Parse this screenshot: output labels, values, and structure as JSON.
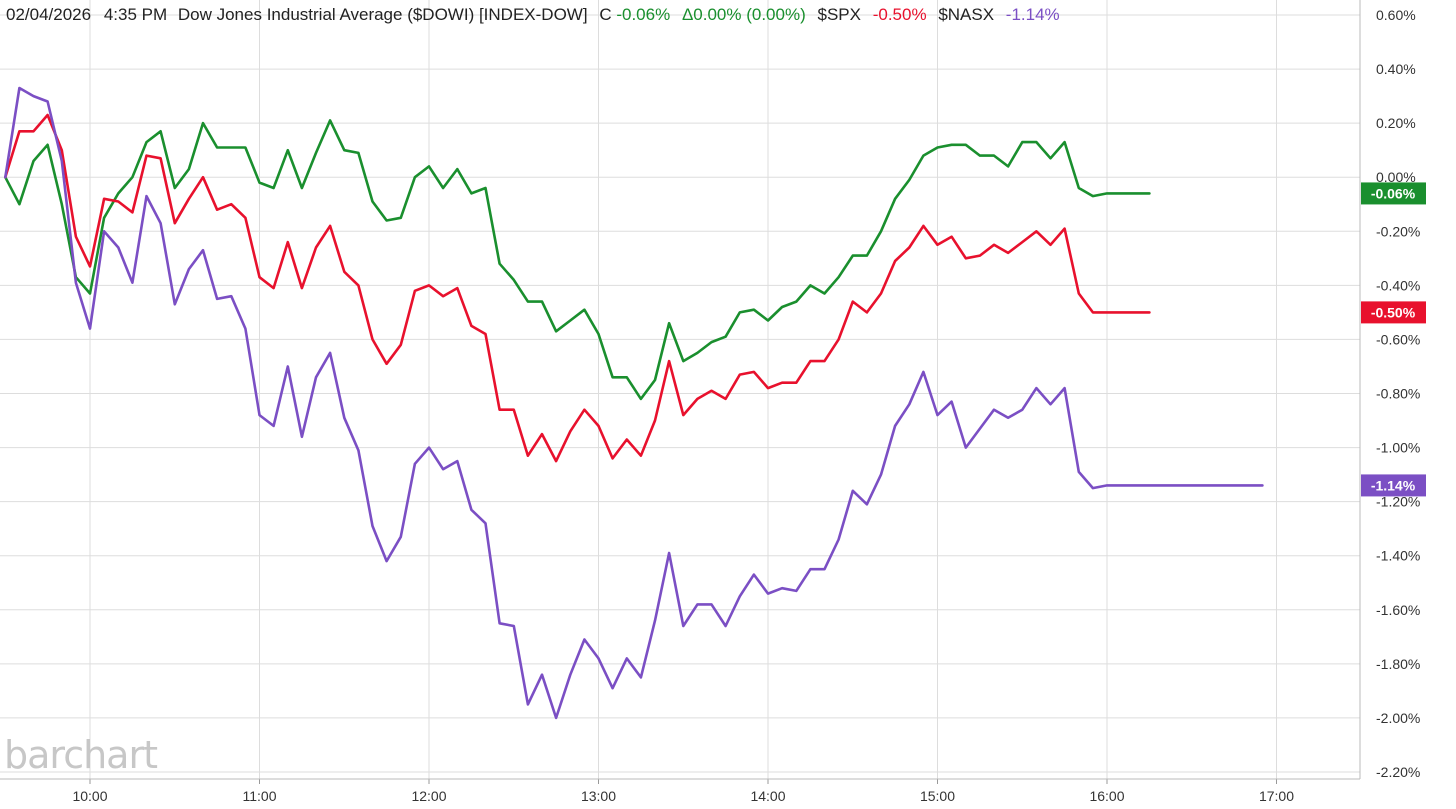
{
  "header": {
    "date": "02/04/2026",
    "time": "4:35 PM",
    "name": "Dow Jones Industrial Average ($DOWI) [INDEX-DOW]",
    "c_label": "C",
    "c_value": "-0.06%",
    "delta_label": "Δ0.00% (0.00%)",
    "spx_label": "$SPX",
    "spx_value": "-0.50%",
    "nasx_label": "$NASX",
    "nasx_value": "-1.14%"
  },
  "watermark": "barchart",
  "colors": {
    "dowi": "#1a8f2e",
    "spx": "#e8112d",
    "nasx": "#7b4fc4",
    "grid": "#dddddd",
    "text": "#222222"
  },
  "chart_data": {
    "type": "line",
    "title": "Dow Jones Industrial Average ($DOWI) [INDEX-DOW]",
    "xlabel": "",
    "ylabel": "",
    "x_ticks": [
      "10:00",
      "11:00",
      "12:00",
      "13:00",
      "14:00",
      "15:00",
      "16:00",
      "17:00"
    ],
    "y_ticks": [
      "0.60%",
      "0.40%",
      "0.20%",
      "0.00%",
      "-0.20%",
      "-0.40%",
      "-0.60%",
      "-0.80%",
      "-1.00%",
      "-1.20%",
      "-1.40%",
      "-1.60%",
      "-1.80%",
      "-2.00%",
      "-2.20%"
    ],
    "ylim": [
      -2.2,
      0.6
    ],
    "grid": true,
    "series": [
      {
        "name": "$DOWI",
        "last_label": "-0.06%",
        "x": [
          570,
          575,
          580,
          585,
          590,
          595,
          600,
          605,
          610,
          615,
          620,
          625,
          630,
          635,
          640,
          645,
          650,
          655,
          660,
          665,
          670,
          675,
          680,
          685,
          690,
          695,
          700,
          705,
          710,
          715,
          720,
          725,
          730,
          735,
          740,
          745,
          750,
          755,
          760,
          765,
          770,
          775,
          780,
          785,
          790,
          795,
          800,
          805,
          810,
          815,
          820,
          825,
          830,
          835,
          840,
          845,
          850,
          855,
          860,
          865,
          870,
          875,
          880,
          885,
          890,
          895,
          900,
          905,
          910,
          915,
          920,
          925,
          930,
          935,
          940,
          945,
          950,
          955,
          960,
          965,
          975
        ],
        "values": [
          0.0,
          -0.1,
          0.06,
          0.12,
          -0.1,
          -0.37,
          -0.43,
          -0.15,
          -0.06,
          0.0,
          0.13,
          0.17,
          -0.04,
          0.03,
          0.2,
          0.11,
          0.11,
          0.11,
          -0.02,
          -0.04,
          0.1,
          -0.04,
          0.09,
          0.21,
          0.1,
          0.09,
          -0.09,
          -0.16,
          -0.15,
          0.0,
          0.04,
          -0.04,
          0.03,
          -0.06,
          -0.04,
          -0.32,
          -0.38,
          -0.46,
          -0.46,
          -0.57,
          -0.53,
          -0.49,
          -0.58,
          -0.74,
          -0.74,
          -0.82,
          -0.75,
          -0.54,
          -0.68,
          -0.65,
          -0.61,
          -0.59,
          -0.5,
          -0.49,
          -0.53,
          -0.48,
          -0.46,
          -0.4,
          -0.43,
          -0.37,
          -0.29,
          -0.29,
          -0.2,
          -0.08,
          -0.01,
          0.08,
          0.11,
          0.12,
          0.12,
          0.08,
          0.08,
          0.04,
          0.13,
          0.13,
          0.07,
          0.13,
          -0.04,
          -0.07,
          -0.06,
          -0.06,
          -0.06
        ]
      },
      {
        "name": "$SPX",
        "last_label": "-0.50%",
        "x": [
          570,
          575,
          580,
          585,
          590,
          595,
          600,
          605,
          610,
          615,
          620,
          625,
          630,
          635,
          640,
          645,
          650,
          655,
          660,
          665,
          670,
          675,
          680,
          685,
          690,
          695,
          700,
          705,
          710,
          715,
          720,
          725,
          730,
          735,
          740,
          745,
          750,
          755,
          760,
          765,
          770,
          775,
          780,
          785,
          790,
          795,
          800,
          805,
          810,
          815,
          820,
          825,
          830,
          835,
          840,
          845,
          850,
          855,
          860,
          865,
          870,
          875,
          880,
          885,
          890,
          895,
          900,
          905,
          910,
          915,
          920,
          925,
          930,
          935,
          940,
          945,
          950,
          955,
          960,
          965,
          975
        ],
        "values": [
          0.0,
          0.17,
          0.17,
          0.23,
          0.1,
          -0.22,
          -0.33,
          -0.08,
          -0.09,
          -0.13,
          0.08,
          0.07,
          -0.17,
          -0.08,
          0.0,
          -0.12,
          -0.1,
          -0.15,
          -0.37,
          -0.41,
          -0.24,
          -0.41,
          -0.26,
          -0.18,
          -0.35,
          -0.4,
          -0.6,
          -0.69,
          -0.62,
          -0.42,
          -0.4,
          -0.44,
          -0.41,
          -0.55,
          -0.58,
          -0.86,
          -0.86,
          -1.03,
          -0.95,
          -1.05,
          -0.94,
          -0.86,
          -0.92,
          -1.04,
          -0.97,
          -1.03,
          -0.9,
          -0.68,
          -0.88,
          -0.82,
          -0.79,
          -0.82,
          -0.73,
          -0.72,
          -0.78,
          -0.76,
          -0.76,
          -0.68,
          -0.68,
          -0.6,
          -0.46,
          -0.5,
          -0.43,
          -0.31,
          -0.26,
          -0.18,
          -0.25,
          -0.22,
          -0.3,
          -0.29,
          -0.25,
          -0.28,
          -0.24,
          -0.2,
          -0.25,
          -0.19,
          -0.43,
          -0.5,
          -0.5,
          -0.5,
          -0.5
        ]
      },
      {
        "name": "$NASX",
        "last_label": "-1.14%",
        "x": [
          570,
          575,
          580,
          585,
          590,
          595,
          600,
          605,
          610,
          615,
          620,
          625,
          630,
          635,
          640,
          645,
          650,
          655,
          660,
          665,
          670,
          675,
          680,
          685,
          690,
          695,
          700,
          705,
          710,
          715,
          720,
          725,
          730,
          735,
          740,
          745,
          750,
          755,
          760,
          765,
          770,
          775,
          780,
          785,
          790,
          795,
          800,
          805,
          810,
          815,
          820,
          825,
          830,
          835,
          840,
          845,
          850,
          855,
          860,
          865,
          870,
          875,
          880,
          885,
          890,
          895,
          900,
          905,
          910,
          915,
          920,
          925,
          930,
          935,
          940,
          945,
          950,
          955,
          960,
          965,
          1015
        ],
        "values": [
          0.0,
          0.33,
          0.3,
          0.28,
          0.06,
          -0.39,
          -0.56,
          -0.2,
          -0.26,
          -0.39,
          -0.07,
          -0.17,
          -0.47,
          -0.34,
          -0.27,
          -0.45,
          -0.44,
          -0.56,
          -0.88,
          -0.92,
          -0.7,
          -0.96,
          -0.74,
          -0.65,
          -0.89,
          -1.01,
          -1.29,
          -1.42,
          -1.33,
          -1.06,
          -1.0,
          -1.08,
          -1.05,
          -1.23,
          -1.28,
          -1.65,
          -1.66,
          -1.95,
          -1.84,
          -2.0,
          -1.84,
          -1.71,
          -1.78,
          -1.89,
          -1.78,
          -1.85,
          -1.64,
          -1.39,
          -1.66,
          -1.58,
          -1.58,
          -1.66,
          -1.55,
          -1.47,
          -1.54,
          -1.52,
          -1.53,
          -1.45,
          -1.45,
          -1.34,
          -1.16,
          -1.21,
          -1.1,
          -0.92,
          -0.84,
          -0.72,
          -0.88,
          -0.83,
          -1.0,
          -0.93,
          -0.86,
          -0.89,
          -0.86,
          -0.78,
          -0.84,
          -0.78,
          -1.09,
          -1.15,
          -1.14,
          -1.14,
          -1.14
        ]
      }
    ]
  }
}
